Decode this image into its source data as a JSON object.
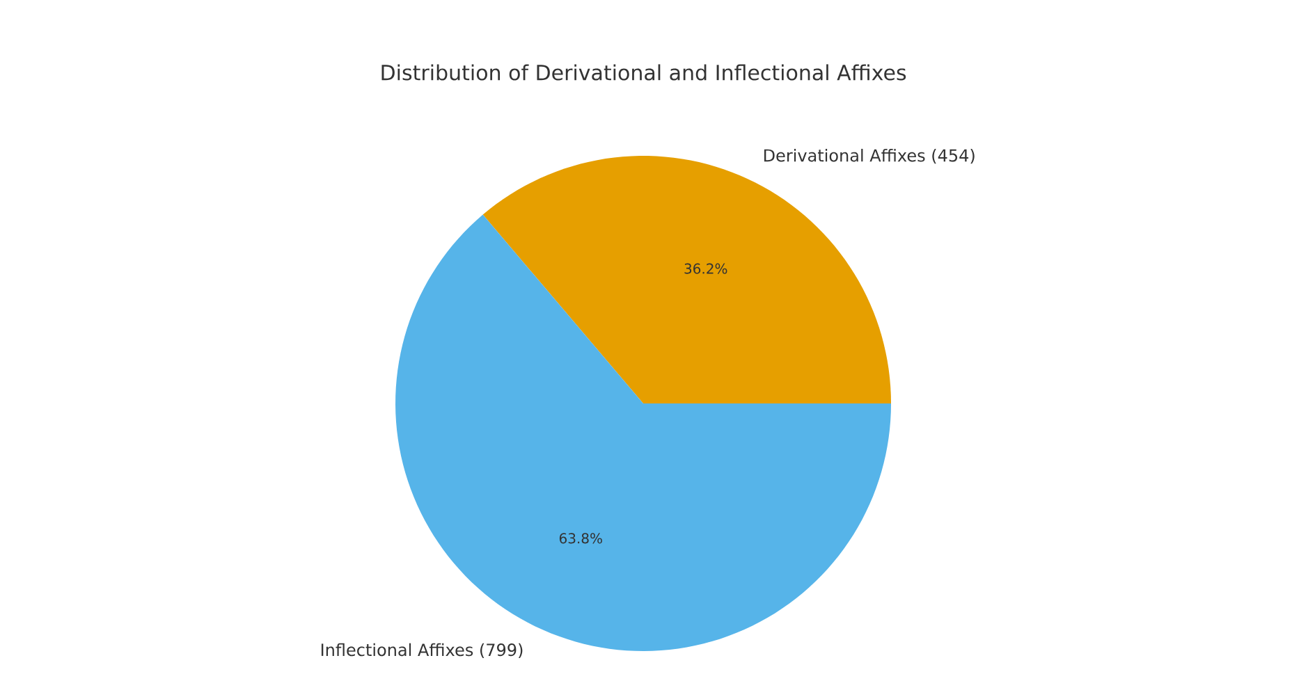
{
  "chart_data": {
    "type": "pie",
    "title": "Distribution of Derivational and Inflectional Affixes",
    "categories": [
      "Derivational Affixes (454)",
      "Inflectional Affixes (799)"
    ],
    "values": [
      36.2,
      63.8
    ],
    "colors": [
      "#e69f00",
      "#56b4e9"
    ],
    "value_labels": [
      "36.2%",
      "63.8%"
    ]
  }
}
